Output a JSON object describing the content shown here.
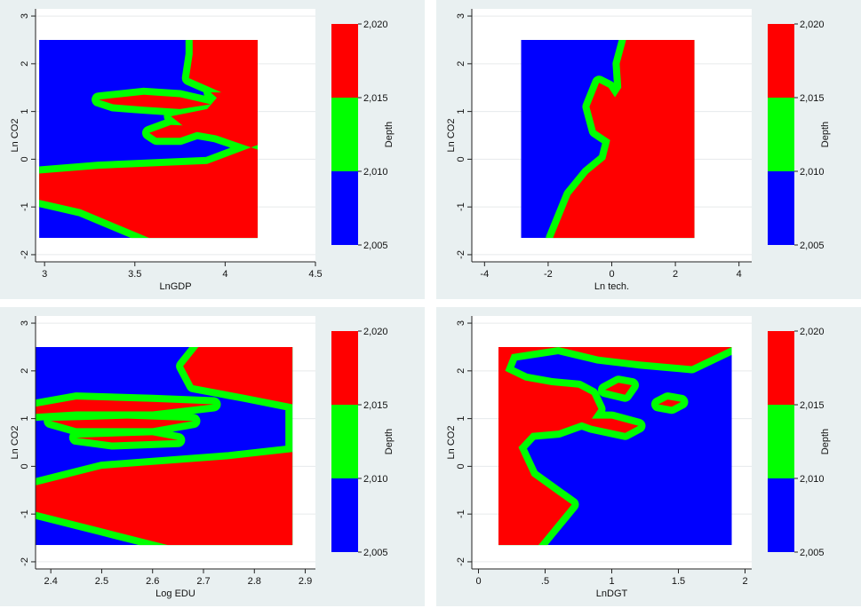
{
  "chart_data": [
    {
      "type": "heatmap",
      "subtype": "contour",
      "xlabel": "LnGDP",
      "ylabel": "Ln CO2",
      "zlabel": "Depth",
      "xlim": [
        2.95,
        4.5
      ],
      "ylim": [
        -2.15,
        3.15
      ],
      "xticks": [
        "3",
        "3.5",
        "4",
        "4.5"
      ],
      "xtick_values": [
        3,
        3.5,
        4,
        4.5
      ],
      "yticks": [
        "-2",
        "-1",
        "0",
        "1",
        "2",
        "3"
      ],
      "ytick_values": [
        -2,
        -1,
        0,
        1,
        2,
        3
      ],
      "data_extent": {
        "x": [
          2.97,
          4.18
        ],
        "y": [
          -1.65,
          2.5
        ]
      },
      "colorbar": {
        "labels": [
          "2,020",
          "2,015",
          "2,010",
          "2,005"
        ],
        "levels": [
          2005,
          2010,
          2015,
          2020
        ],
        "colors": [
          "#0000ff",
          "#00ff00",
          "#ff0000"
        ]
      },
      "regions": [
        {
          "level": "2,015-2,020",
          "color": "#ff0000",
          "polygon": [
            [
              3.82,
              2.5
            ],
            [
              4.18,
              2.5
            ],
            [
              4.18,
              0.3
            ],
            [
              3.9,
              -0.1
            ],
            [
              3.3,
              -0.2
            ],
            [
              2.97,
              -0.3
            ],
            [
              2.97,
              -0.85
            ],
            [
              3.2,
              -1.05
            ],
            [
              3.58,
              -1.65
            ],
            [
              4.18,
              -1.65
            ],
            [
              4.18,
              0.2
            ],
            [
              3.95,
              0.5
            ],
            [
              3.8,
              0.6
            ],
            [
              3.7,
              0.9
            ],
            [
              3.9,
              1.05
            ],
            [
              3.98,
              1.4
            ],
            [
              3.8,
              1.7
            ],
            [
              3.82,
              2.2
            ]
          ]
        },
        {
          "level": "2,015-2,020",
          "color": "#ff0000",
          "polygon": [
            [
              3.3,
              1.25
            ],
            [
              3.55,
              1.35
            ],
            [
              3.75,
              1.3
            ],
            [
              3.92,
              1.15
            ],
            [
              3.75,
              1.05
            ],
            [
              3.55,
              1.1
            ],
            [
              3.38,
              1.15
            ]
          ]
        },
        {
          "level": "2,015-2,020",
          "color": "#ff0000",
          "polygon": [
            [
              3.58,
              0.55
            ],
            [
              3.7,
              0.72
            ],
            [
              3.82,
              0.7
            ],
            [
              3.85,
              0.58
            ],
            [
              3.75,
              0.45
            ],
            [
              3.62,
              0.45
            ]
          ]
        },
        {
          "level": "2,015-2,020",
          "color": "#ff0000",
          "polygon": [
            [
              3.92,
              1.4
            ],
            [
              4.18,
              1.4
            ],
            [
              4.18,
              1.2
            ],
            [
              3.98,
              1.2
            ]
          ]
        }
      ]
    },
    {
      "type": "heatmap",
      "subtype": "contour",
      "xlabel": "Ln tech.",
      "ylabel": "Ln CO2",
      "zlabel": "Depth",
      "xlim": [
        -4.4,
        4.4
      ],
      "ylim": [
        -2.15,
        3.15
      ],
      "xticks": [
        "-4",
        "-2",
        "0",
        "2",
        "4"
      ],
      "xtick_values": [
        -4,
        -2,
        0,
        2,
        4
      ],
      "yticks": [
        "-2",
        "-1",
        "0",
        "1",
        "2",
        "3"
      ],
      "ytick_values": [
        -2,
        -1,
        0,
        1,
        2,
        3
      ],
      "data_extent": {
        "x": [
          -2.85,
          2.6
        ],
        "y": [
          -1.65,
          2.5
        ]
      },
      "colorbar": {
        "labels": [
          "2,020",
          "2,015",
          "2,010",
          "2,005"
        ],
        "levels": [
          2005,
          2010,
          2015,
          2020
        ],
        "colors": [
          "#0000ff",
          "#00ff00",
          "#ff0000"
        ]
      },
      "regions": [
        {
          "level": "2,015-2,020",
          "color": "#ff0000",
          "polygon": [
            [
              0.45,
              2.5
            ],
            [
              2.6,
              2.5
            ],
            [
              2.6,
              -1.65
            ],
            [
              -1.85,
              -1.65
            ],
            [
              -1.3,
              -0.75
            ],
            [
              -0.75,
              -0.3
            ],
            [
              -0.2,
              0.0
            ],
            [
              -0.05,
              0.4
            ],
            [
              -0.5,
              0.6
            ],
            [
              -0.7,
              1.1
            ],
            [
              -0.4,
              1.6
            ],
            [
              -0.1,
              1.5
            ],
            [
              0.1,
              1.3
            ],
            [
              0.3,
              1.5
            ],
            [
              0.25,
              2.0
            ]
          ]
        }
      ]
    },
    {
      "type": "heatmap",
      "subtype": "contour",
      "xlabel": "Log EDU",
      "ylabel": "Ln CO2",
      "zlabel": "Depth",
      "xlim": [
        2.37,
        2.92
      ],
      "ylim": [
        -2.15,
        3.15
      ],
      "xticks": [
        "2.4",
        "2.5",
        "2.6",
        "2.7",
        "2.8",
        "2.9"
      ],
      "xtick_values": [
        2.4,
        2.5,
        2.6,
        2.7,
        2.8,
        2.9
      ],
      "yticks": [
        "-2",
        "-1",
        "0",
        "1",
        "2",
        "3"
      ],
      "ytick_values": [
        -2,
        -1,
        0,
        1,
        2,
        3
      ],
      "data_extent": {
        "x": [
          2.37,
          2.875
        ],
        "y": [
          -1.65,
          2.5
        ]
      },
      "colorbar": {
        "labels": [
          "2,020",
          "2,015",
          "2,010",
          "2,005"
        ],
        "levels": [
          2005,
          2010,
          2015,
          2020
        ],
        "colors": [
          "#0000ff",
          "#00ff00",
          "#ff0000"
        ]
      },
      "regions": [
        {
          "level": "2,015-2,020",
          "color": "#ff0000",
          "polygon": [
            [
              2.69,
              2.5
            ],
            [
              2.875,
              2.5
            ],
            [
              2.875,
              0.3
            ],
            [
              2.75,
              0.15
            ],
            [
              2.5,
              -0.05
            ],
            [
              2.37,
              -0.4
            ],
            [
              2.37,
              -0.95
            ],
            [
              2.5,
              -1.3
            ],
            [
              2.63,
              -1.65
            ],
            [
              2.875,
              -1.65
            ],
            [
              2.875,
              1.3
            ],
            [
              2.78,
              1.5
            ],
            [
              2.68,
              1.7
            ],
            [
              2.66,
              2.1
            ]
          ]
        },
        {
          "level": "2,015-2,020",
          "color": "#ff0000",
          "polygon": [
            [
              2.37,
              1.25
            ],
            [
              2.45,
              1.4
            ],
            [
              2.6,
              1.35
            ],
            [
              2.72,
              1.3
            ],
            [
              2.6,
              1.15
            ],
            [
              2.45,
              1.15
            ],
            [
              2.37,
              1.1
            ]
          ]
        },
        {
          "level": "2,015-2,020",
          "color": "#ff0000",
          "polygon": [
            [
              2.4,
              0.95
            ],
            [
              2.55,
              1.0
            ],
            [
              2.68,
              0.95
            ],
            [
              2.6,
              0.8
            ],
            [
              2.45,
              0.8
            ]
          ]
        },
        {
          "level": "2,015-2,020",
          "color": "#ff0000",
          "polygon": [
            [
              2.45,
              0.6
            ],
            [
              2.6,
              0.65
            ],
            [
              2.65,
              0.55
            ],
            [
              2.52,
              0.5
            ]
          ]
        }
      ]
    },
    {
      "type": "heatmap",
      "subtype": "contour",
      "xlabel": "LnDGT",
      "ylabel": "Ln CO2",
      "zlabel": "Depth",
      "xlim": [
        -0.05,
        2.05
      ],
      "ylim": [
        -2.15,
        3.15
      ],
      "xticks": [
        "0",
        ".5",
        "1",
        "1.5",
        "2"
      ],
      "xtick_values": [
        0,
        0.5,
        1,
        1.5,
        2
      ],
      "yticks": [
        "-2",
        "-1",
        "0",
        "1",
        "2",
        "3"
      ],
      "ytick_values": [
        -2,
        -1,
        0,
        1,
        2,
        3
      ],
      "data_extent": {
        "x": [
          0.15,
          1.9
        ],
        "y": [
          -1.65,
          2.5
        ]
      },
      "colorbar": {
        "labels": [
          "2,020",
          "2,015",
          "2,010",
          "2,005"
        ],
        "levels": [
          2005,
          2010,
          2015,
          2020
        ],
        "colors": [
          "#0000ff",
          "#00ff00",
          "#ff0000"
        ]
      },
      "regions": [
        {
          "level": "2,015-2,020",
          "color": "#ff0000",
          "polygon": [
            [
              0.15,
              2.5
            ],
            [
              1.9,
              2.5
            ],
            [
              1.6,
              2.1
            ],
            [
              1.2,
              2.2
            ],
            [
              0.9,
              2.3
            ],
            [
              0.6,
              2.5
            ],
            [
              0.25,
              2.35
            ],
            [
              0.2,
              2.0
            ],
            [
              0.35,
              1.8
            ],
            [
              0.55,
              1.7
            ],
            [
              0.75,
              1.65
            ],
            [
              0.85,
              1.5
            ],
            [
              0.9,
              1.2
            ],
            [
              0.85,
              1.0
            ],
            [
              0.6,
              0.75
            ],
            [
              0.4,
              0.7
            ],
            [
              0.3,
              0.4
            ],
            [
              0.4,
              -0.2
            ],
            [
              0.6,
              -0.6
            ],
            [
              0.7,
              -0.8
            ],
            [
              0.45,
              -1.65
            ],
            [
              0.15,
              -1.65
            ]
          ]
        },
        {
          "level": "2,015-2,020",
          "color": "#ff0000",
          "polygon": [
            [
              0.95,
              1.6
            ],
            [
              1.05,
              1.75
            ],
            [
              1.15,
              1.7
            ],
            [
              1.1,
              1.5
            ]
          ]
        },
        {
          "level": "2,015-2,020",
          "color": "#ff0000",
          "polygon": [
            [
              0.7,
              1.0
            ],
            [
              0.85,
              0.85
            ],
            [
              1.1,
              0.7
            ],
            [
              1.2,
              0.85
            ],
            [
              1.0,
              1.0
            ]
          ]
        },
        {
          "level": "2,015-2,020",
          "color": "#ff0000",
          "polygon": [
            [
              1.35,
              1.3
            ],
            [
              1.42,
              1.4
            ],
            [
              1.52,
              1.35
            ],
            [
              1.45,
              1.25
            ]
          ]
        }
      ]
    }
  ]
}
